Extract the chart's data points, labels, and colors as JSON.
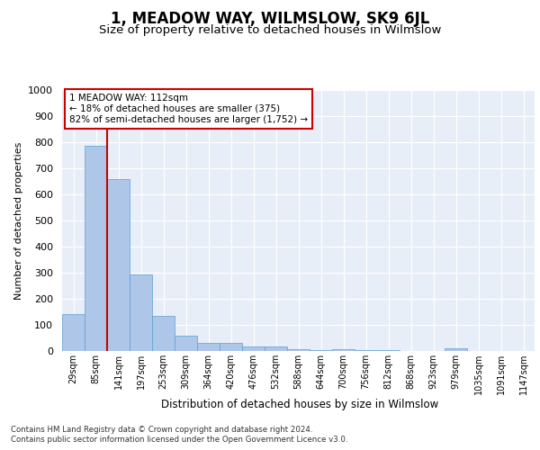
{
  "title": "1, MEADOW WAY, WILMSLOW, SK9 6JL",
  "subtitle": "Size of property relative to detached houses in Wilmslow",
  "xlabel": "Distribution of detached houses by size in Wilmslow",
  "ylabel": "Number of detached properties",
  "categories": [
    "29sqm",
    "85sqm",
    "141sqm",
    "197sqm",
    "253sqm",
    "309sqm",
    "364sqm",
    "420sqm",
    "476sqm",
    "532sqm",
    "588sqm",
    "644sqm",
    "700sqm",
    "756sqm",
    "812sqm",
    "868sqm",
    "923sqm",
    "979sqm",
    "1035sqm",
    "1091sqm",
    "1147sqm"
  ],
  "values": [
    140,
    785,
    660,
    293,
    133,
    57,
    30,
    30,
    17,
    18,
    8,
    5,
    6,
    5,
    5,
    0,
    0,
    10,
    0,
    0,
    0
  ],
  "bar_color": "#aec6e8",
  "bar_edge_color": "#5a9fd4",
  "property_line_color": "#cc0000",
  "annotation_text": "1 MEADOW WAY: 112sqm\n← 18% of detached houses are smaller (375)\n82% of semi-detached houses are larger (1,752) →",
  "annotation_box_color": "#ffffff",
  "annotation_box_edge": "#cc0000",
  "ylim": [
    0,
    1000
  ],
  "yticks": [
    0,
    100,
    200,
    300,
    400,
    500,
    600,
    700,
    800,
    900,
    1000
  ],
  "background_color": "#e8eef7",
  "footer1": "Contains HM Land Registry data © Crown copyright and database right 2024.",
  "footer2": "Contains public sector information licensed under the Open Government Licence v3.0.",
  "title_fontsize": 12,
  "subtitle_fontsize": 9.5,
  "grid_color": "#ffffff",
  "fig_bg": "#ffffff"
}
